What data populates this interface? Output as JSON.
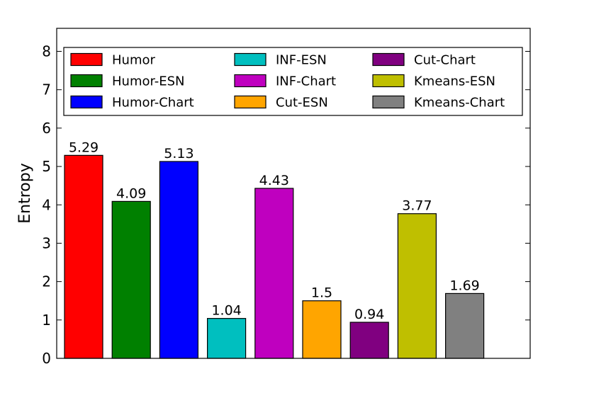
{
  "chart_data": {
    "type": "bar",
    "categories": [
      "Humor",
      "Humor-ESN",
      "Humor-Chart",
      "INF-ESN",
      "INF-Chart",
      "Cut-ESN",
      "Cut-Chart",
      "Kmeans-ESN",
      "Kmeans-Chart"
    ],
    "values": [
      5.29,
      4.09,
      5.13,
      1.04,
      4.43,
      1.5,
      0.94,
      3.77,
      1.69
    ],
    "data_labels": [
      "5.29",
      "4.09",
      "5.13",
      "1.04",
      "4.43",
      "1.5",
      "0.94",
      "3.77",
      "1.69"
    ],
    "colors": [
      "#ff0000",
      "#008000",
      "#0000ff",
      "#00bfbf",
      "#bf00bf",
      "#ffa500",
      "#800080",
      "#bfbf00",
      "#808080"
    ],
    "ylabel": "Entropy",
    "xlabel": "",
    "ylim": [
      0,
      8.6
    ],
    "yticks": [
      0,
      1,
      2,
      3,
      4,
      5,
      6,
      7,
      8
    ],
    "ytick_labels": [
      "0",
      "1",
      "2",
      "3",
      "4",
      "5",
      "6",
      "7",
      "8"
    ],
    "grid": false,
    "legend": {
      "placement": "top",
      "columns": 3,
      "entries": [
        "Humor",
        "Humor-ESN",
        "Humor-Chart",
        "INF-ESN",
        "INF-Chart",
        "Cut-ESN",
        "Cut-Chart",
        "Kmeans-ESN",
        "Kmeans-Chart"
      ]
    }
  }
}
